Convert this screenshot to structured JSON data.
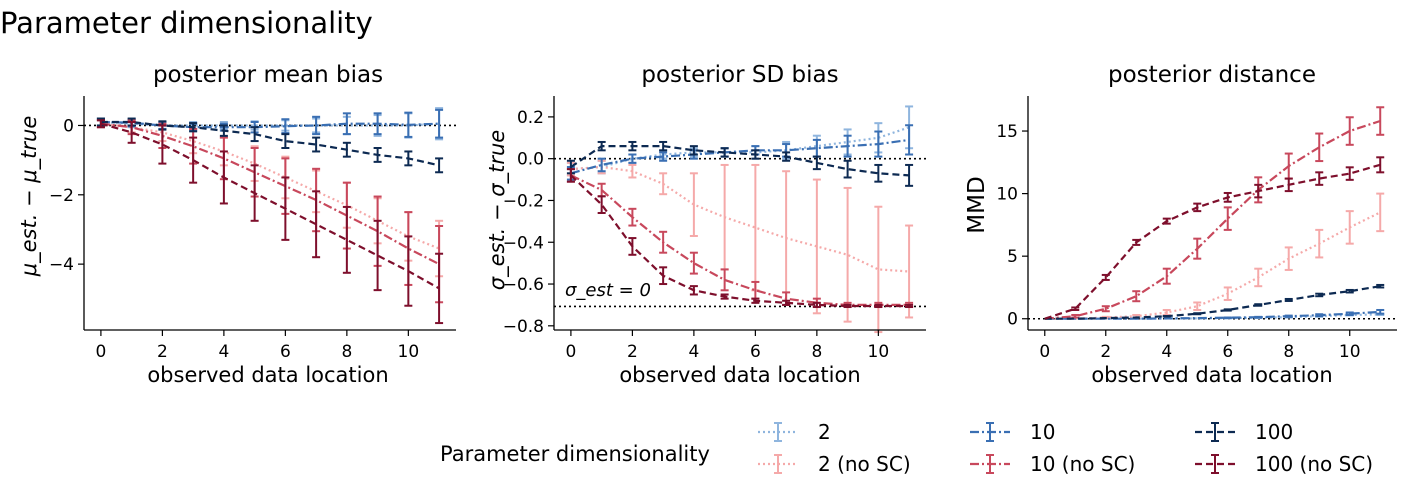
{
  "figure_title": "Parameter dimensionality",
  "legend": {
    "title": "Parameter dimensionality",
    "entries": [
      {
        "label": "2",
        "color": "#8FB5DE",
        "dash": "dotted"
      },
      {
        "label": "2 (no SC)",
        "color": "#F5A9A9",
        "dash": "dotted"
      },
      {
        "label": "10",
        "color": "#3A6FB3",
        "dash": "dashdot"
      },
      {
        "label": "10 (no SC)",
        "color": "#C8485C",
        "dash": "dashdot"
      },
      {
        "label": "100",
        "color": "#0D2A52",
        "dash": "dashed"
      },
      {
        "label": "100 (no SC)",
        "color": "#7E0F2C",
        "dash": "dashed"
      }
    ]
  },
  "chart_data": [
    {
      "type": "line",
      "title": "posterior mean bias",
      "xlabel": "observed data location",
      "ylabel": "μ_est. − μ_true",
      "xlim": [
        -0.55,
        11.55
      ],
      "ylim": [
        -5.9,
        0.85
      ],
      "xticks": [
        0,
        2,
        4,
        6,
        8,
        10
      ],
      "yticks": [
        0,
        -2,
        -4
      ],
      "x": [
        0,
        1,
        2,
        3,
        4,
        5,
        6,
        7,
        8,
        9,
        10,
        11
      ],
      "hline": 0,
      "series": [
        {
          "name": "2",
          "values": [
            0.1,
            0.05,
            0,
            0,
            0,
            0,
            0,
            0,
            0,
            0,
            0,
            0.05
          ],
          "err": [
            0.1,
            0.1,
            0.1,
            0.1,
            0.1,
            0.12,
            0.15,
            0.2,
            0.25,
            0.3,
            0.35,
            0.45
          ]
        },
        {
          "name": "2 (no SC)",
          "values": [
            0.05,
            -0.05,
            -0.2,
            -0.45,
            -0.75,
            -1.1,
            -1.5,
            -1.9,
            -2.3,
            -2.75,
            -3.2,
            -3.55
          ],
          "err": [
            0.1,
            0.15,
            0.25,
            0.35,
            0.4,
            0.5,
            0.6,
            0.6,
            0.65,
            0.65,
            0.7,
            0.8
          ]
        },
        {
          "name": "10",
          "values": [
            0.1,
            0.08,
            0,
            -0.05,
            -0.05,
            -0.05,
            -0.02,
            0,
            0.05,
            0.05,
            0.02,
            0.05
          ],
          "err": [
            0.1,
            0.1,
            0.1,
            0.1,
            0.1,
            0.15,
            0.2,
            0.25,
            0.3,
            0.3,
            0.35,
            0.4
          ]
        },
        {
          "name": "10 (no SC)",
          "values": [
            0.05,
            -0.05,
            -0.3,
            -0.6,
            -0.95,
            -1.35,
            -1.75,
            -2.15,
            -2.6,
            -3.05,
            -3.55,
            -4.0
          ],
          "err": [
            0.1,
            0.2,
            0.35,
            0.5,
            0.6,
            0.7,
            0.8,
            0.9,
            0.95,
            1.0,
            1.05,
            1.1
          ]
        },
        {
          "name": "100",
          "values": [
            0.1,
            0.1,
            0,
            -0.05,
            -0.15,
            -0.25,
            -0.45,
            -0.55,
            -0.7,
            -0.85,
            -0.95,
            -1.15
          ],
          "err": [
            0.1,
            0.1,
            0.12,
            0.12,
            0.15,
            0.2,
            0.2,
            0.2,
            0.2,
            0.2,
            0.2,
            0.2
          ]
        },
        {
          "name": "100 (no SC)",
          "values": [
            0.05,
            -0.2,
            -0.55,
            -1.0,
            -1.5,
            -1.95,
            -2.4,
            -2.85,
            -3.3,
            -3.75,
            -4.2,
            -4.7
          ],
          "err": [
            0.1,
            0.3,
            0.55,
            0.65,
            0.75,
            0.8,
            0.9,
            0.95,
            0.95,
            1.0,
            1.0,
            1.0
          ]
        }
      ]
    },
    {
      "type": "line",
      "title": "posterior SD bias",
      "xlabel": "observed data location",
      "ylabel": "σ_est. − σ_true",
      "xlim": [
        -0.55,
        11.55
      ],
      "ylim": [
        -0.82,
        0.3
      ],
      "xticks": [
        0,
        2,
        4,
        6,
        8,
        10
      ],
      "yticks": [
        0.2,
        0.0,
        -0.2,
        -0.4,
        -0.6,
        -0.8
      ],
      "ytick_labels": [
        "0.2",
        "0.0",
        "−0.2",
        "−0.4",
        "−0.6",
        "−0.8"
      ],
      "x": [
        0,
        1,
        2,
        3,
        4,
        5,
        6,
        7,
        8,
        9,
        10,
        11
      ],
      "hline": 0,
      "hline2": -0.707,
      "annotation": "σ_est = 0",
      "series": [
        {
          "name": "2",
          "values": [
            -0.05,
            -0.04,
            0,
            0.02,
            0.03,
            0.03,
            0.03,
            0.04,
            0.06,
            0.08,
            0.1,
            0.15
          ],
          "err": [
            0.03,
            0.03,
            0.02,
            0.02,
            0.02,
            0.02,
            0.03,
            0.04,
            0.05,
            0.06,
            0.07,
            0.1
          ]
        },
        {
          "name": "2 (no SC)",
          "values": [
            -0.05,
            -0.04,
            -0.06,
            -0.12,
            -0.22,
            -0.28,
            -0.33,
            -0.38,
            -0.42,
            -0.46,
            -0.53,
            -0.54
          ],
          "err": [
            0.03,
            0.03,
            0.03,
            0.05,
            0.15,
            0.25,
            0.3,
            0.32,
            0.32,
            0.32,
            0.3,
            0.22
          ]
        },
        {
          "name": "10",
          "values": [
            -0.07,
            -0.03,
            0,
            0.01,
            0.02,
            0.03,
            0.04,
            0.04,
            0.05,
            0.06,
            0.07,
            0.09
          ],
          "err": [
            0.03,
            0.03,
            0.02,
            0.02,
            0.02,
            0.02,
            0.02,
            0.03,
            0.04,
            0.05,
            0.06,
            0.07
          ]
        },
        {
          "name": "10 (no SC)",
          "values": [
            -0.08,
            -0.15,
            -0.28,
            -0.4,
            -0.5,
            -0.58,
            -0.63,
            -0.67,
            -0.69,
            -0.7,
            -0.7,
            -0.7
          ],
          "err": [
            0.03,
            0.03,
            0.04,
            0.05,
            0.05,
            0.05,
            0.04,
            0.03,
            0.02,
            0.01,
            0.01,
            0.01
          ]
        },
        {
          "name": "100",
          "values": [
            -0.04,
            0.06,
            0.06,
            0.06,
            0.04,
            0.03,
            0.02,
            0.01,
            -0.02,
            -0.05,
            -0.07,
            -0.08
          ],
          "err": [
            0.03,
            0.02,
            0.02,
            0.02,
            0.02,
            0.02,
            0.02,
            0.02,
            0.03,
            0.04,
            0.04,
            0.05
          ]
        },
        {
          "name": "100 (no SC)",
          "values": [
            -0.08,
            -0.22,
            -0.42,
            -0.56,
            -0.63,
            -0.66,
            -0.68,
            -0.69,
            -0.7,
            -0.705,
            -0.705,
            -0.705
          ],
          "err": [
            0.03,
            0.04,
            0.04,
            0.04,
            0.02,
            0.01,
            0.01,
            0.01,
            0.01,
            0.005,
            0.005,
            0.005
          ]
        }
      ]
    },
    {
      "type": "line",
      "title": "posterior distance",
      "xlabel": "observed data location",
      "ylabel": "MMD",
      "xlim": [
        -0.55,
        11.55
      ],
      "ylim": [
        -0.9,
        17.8
      ],
      "xticks": [
        0,
        2,
        4,
        6,
        8,
        10
      ],
      "yticks": [
        0,
        5,
        10,
        15
      ],
      "x": [
        0,
        1,
        2,
        3,
        4,
        5,
        6,
        7,
        8,
        9,
        10,
        11
      ],
      "hline": 0,
      "series": [
        {
          "name": "2",
          "values": [
            0,
            0,
            0,
            0,
            0.02,
            0.03,
            0.05,
            0.08,
            0.12,
            0.2,
            0.3,
            0.35
          ],
          "err": [
            0,
            0,
            0,
            0,
            0,
            0,
            0.02,
            0.02,
            0.02,
            0.03,
            0.03,
            0.05
          ]
        },
        {
          "name": "2 (no SC)",
          "values": [
            0,
            0,
            0.1,
            0.2,
            0.5,
            1.0,
            2.0,
            3.3,
            4.8,
            6.0,
            7.3,
            8.5
          ],
          "err": [
            0,
            0,
            0.05,
            0.1,
            0.2,
            0.3,
            0.5,
            0.7,
            0.9,
            1.1,
            1.3,
            1.5
          ]
        },
        {
          "name": "10",
          "values": [
            0,
            0,
            0,
            0,
            0.03,
            0.05,
            0.08,
            0.12,
            0.2,
            0.28,
            0.4,
            0.55
          ],
          "err": [
            0,
            0,
            0,
            0,
            0,
            0,
            0.02,
            0.03,
            0.05,
            0.08,
            0.1,
            0.15
          ]
        },
        {
          "name": "10 (no SC)",
          "values": [
            0,
            0.2,
            0.8,
            1.8,
            3.4,
            5.6,
            8.0,
            10.3,
            12.2,
            13.7,
            15.0,
            15.8
          ],
          "err": [
            0,
            0.1,
            0.2,
            0.4,
            0.6,
            0.8,
            0.9,
            1.0,
            1.0,
            1.1,
            1.1,
            1.1
          ]
        },
        {
          "name": "100",
          "values": [
            0,
            0,
            0.05,
            0.1,
            0.2,
            0.4,
            0.7,
            1.1,
            1.5,
            1.9,
            2.2,
            2.6
          ],
          "err": [
            0,
            0,
            0,
            0,
            0.02,
            0.04,
            0.05,
            0.06,
            0.08,
            0.1,
            0.1,
            0.1
          ]
        },
        {
          "name": "100 (no SC)",
          "values": [
            0,
            0.8,
            3.3,
            6.1,
            7.8,
            8.9,
            9.7,
            10.2,
            10.7,
            11.2,
            11.6,
            12.3
          ],
          "err": [
            0,
            0.1,
            0.2,
            0.2,
            0.2,
            0.3,
            0.35,
            0.5,
            0.5,
            0.5,
            0.5,
            0.6
          ]
        }
      ]
    }
  ]
}
